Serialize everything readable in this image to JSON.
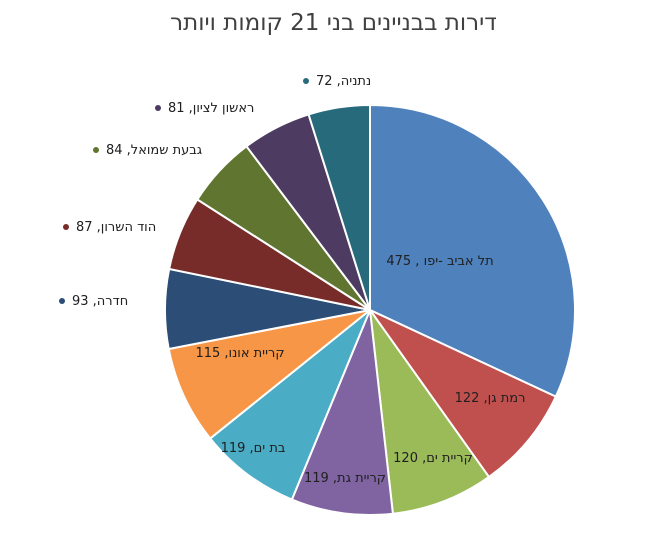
{
  "chart_data": {
    "type": "pie",
    "title": "דירות בבניינים בני 21 קומות ויותר",
    "slices": [
      {
        "label": "תל אביב -יפו",
        "value": 475,
        "color": "#4f81bd",
        "text": "תל אביב -יפו , 475"
      },
      {
        "label": "רמת גן",
        "value": 122,
        "color": "#c0504d",
        "text": "רמת גן, 122"
      },
      {
        "label": "קריית ים",
        "value": 120,
        "color": "#9bbb59",
        "text": "קריית ים, 120"
      },
      {
        "label": "קריית גת",
        "value": 119,
        "color": "#8064a2",
        "text": "קריית גת, 119"
      },
      {
        "label": "בת ים",
        "value": 119,
        "color": "#4bacc6",
        "text": "בת ים, 119"
      },
      {
        "label": "קריית אונו",
        "value": 115,
        "color": "#f79646",
        "text": "קריית אונו, 115"
      },
      {
        "label": "חדרה",
        "value": 93,
        "color": "#2c4d75",
        "text": "חדרה, 93"
      },
      {
        "label": "הוד השרון",
        "value": 87,
        "color": "#772c2a",
        "text": "הוד השרון, 87"
      },
      {
        "label": "גבעת שמואל",
        "value": 84,
        "color": "#5f7530",
        "text": "גבעת שמואל, 84"
      },
      {
        "label": "ראשון לציון",
        "value": 81,
        "color": "#4d3b62",
        "text": "ראשון לציון, 81"
      },
      {
        "label": "נתניה",
        "value": 72,
        "color": "#276a7c",
        "text": "נתניה, 72"
      }
    ]
  }
}
